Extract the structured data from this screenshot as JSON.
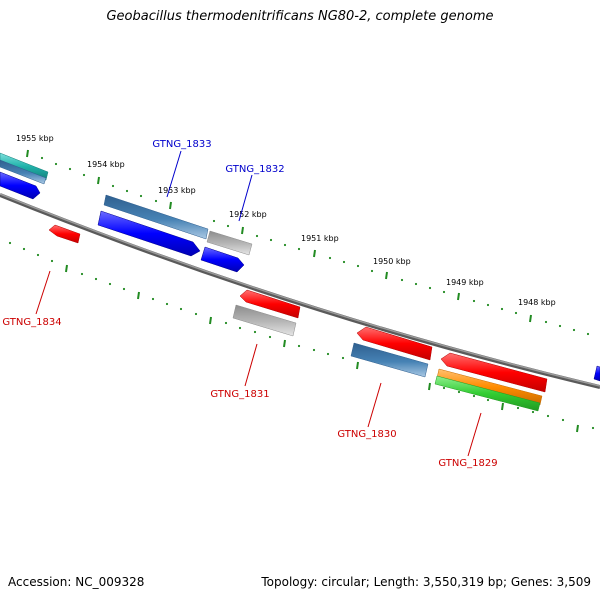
{
  "title": "Geobacillus thermodenitrificans NG80-2, complete genome",
  "footer": {
    "accession": "Accession: NC_009328",
    "summary": "Topology: circular; Length: 3,550,319 bp; Genes: 3,509"
  },
  "colors": {
    "backbone": "#808080",
    "tick": "#228b22",
    "forward_label": "#0000cc",
    "reverse_label": "#cc0000",
    "blue_gene": "#0000ff",
    "steelblue_feature": "#4682b4",
    "gray_feature": "#b0b0b0",
    "red_gene": "#ff0000",
    "orange_feature": "#ff8c00",
    "green_feature": "#32cd32",
    "cyan_feature": "#20b2aa"
  },
  "scale": {
    "unit": "kbp",
    "labels": [
      "1955 kbp",
      "1954 kbp",
      "1953 kbp",
      "1952 kbp",
      "1951 kbp",
      "1950 kbp",
      "1949 kbp",
      "1948 kbp"
    ]
  },
  "genes": [
    {
      "id": "GTNG_1834",
      "strand": "reverse",
      "color": "red"
    },
    {
      "id": "GTNG_1833",
      "strand": "forward",
      "color": "blue"
    },
    {
      "id": "GTNG_1832",
      "strand": "forward",
      "color": "blue"
    },
    {
      "id": "GTNG_1831",
      "strand": "reverse",
      "color": "red"
    },
    {
      "id": "GTNG_1830",
      "strand": "reverse",
      "color": "red"
    },
    {
      "id": "GTNG_1829",
      "strand": "reverse",
      "color": "red"
    }
  ]
}
